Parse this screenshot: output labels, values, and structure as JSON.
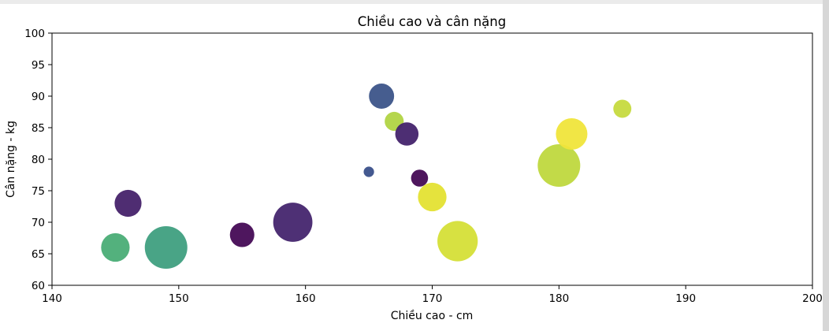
{
  "chart_data": {
    "type": "scatter",
    "title": "Chiều cao và cân nặng",
    "xlabel": "Chiều cao - cm",
    "ylabel": "Cân nặng - kg",
    "xlim": [
      140,
      200
    ],
    "ylim": [
      60,
      100
    ],
    "xticks": [
      140,
      150,
      160,
      170,
      180,
      190,
      200
    ],
    "yticks": [
      60,
      65,
      70,
      75,
      80,
      85,
      90,
      95,
      100
    ],
    "xtick_labels": [
      "140",
      "150",
      "160",
      "170",
      "180",
      "190",
      "200"
    ],
    "ytick_labels": [
      "60",
      "65",
      "70",
      "75",
      "80",
      "85",
      "90",
      "95",
      "100"
    ],
    "grid": false,
    "colormap": "viridis",
    "points": [
      {
        "x": 145,
        "y": 66,
        "size": 0.45,
        "color": "#4aad76"
      },
      {
        "x": 146,
        "y": 73,
        "size": 0.4,
        "color": "#46226a"
      },
      {
        "x": 149,
        "y": 66,
        "size": 1.0,
        "color": "#3f9f80"
      },
      {
        "x": 155,
        "y": 68,
        "size": 0.33,
        "color": "#450a55"
      },
      {
        "x": 159,
        "y": 70,
        "size": 0.85,
        "color": "#45256e"
      },
      {
        "x": 165,
        "y": 78,
        "size": 0.06,
        "color": "#3a508a"
      },
      {
        "x": 166,
        "y": 90,
        "size": 0.35,
        "color": "#3c5489"
      },
      {
        "x": 167,
        "y": 86,
        "size": 0.2,
        "color": "#b1d443"
      },
      {
        "x": 168,
        "y": 84,
        "size": 0.3,
        "color": "#43236b"
      },
      {
        "x": 169,
        "y": 77,
        "size": 0.16,
        "color": "#440a54"
      },
      {
        "x": 170,
        "y": 74,
        "size": 0.45,
        "color": "#e4e233"
      },
      {
        "x": 172,
        "y": 67,
        "size": 0.9,
        "color": "#d5df37"
      },
      {
        "x": 180,
        "y": 79,
        "size": 1.0,
        "color": "#bfd83e"
      },
      {
        "x": 181,
        "y": 84,
        "size": 0.55,
        "color": "#f0e53b"
      },
      {
        "x": 185,
        "y": 88,
        "size": 0.18,
        "color": "#c6da3f"
      }
    ]
  }
}
